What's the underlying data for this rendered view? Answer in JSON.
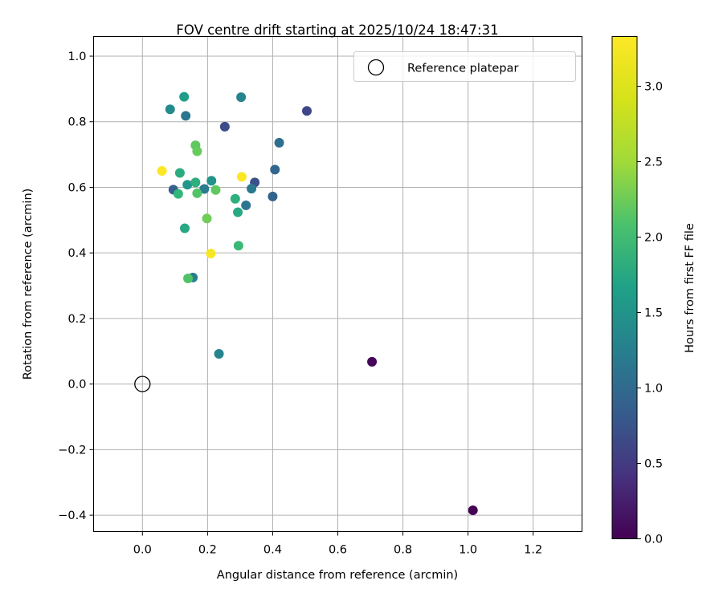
{
  "chart_data": {
    "type": "scatter",
    "title": "FOV centre drift starting at 2025/10/24 18:47:31",
    "xlabel": "Angular distance from reference (arcmin)",
    "ylabel": "Rotation from reference (arcmin)",
    "xlim": [
      -0.15,
      1.35
    ],
    "ylim": [
      -0.45,
      1.06
    ],
    "xticks": [
      0.0,
      0.2,
      0.4,
      0.6,
      0.8,
      1.0,
      1.2
    ],
    "xtick_labels": [
      "0.0",
      "0.2",
      "0.4",
      "0.6",
      "0.8",
      "1.0",
      "1.2"
    ],
    "yticks": [
      -0.4,
      -0.2,
      0.0,
      0.2,
      0.4,
      0.6,
      0.8,
      1.0
    ],
    "ytick_labels": [
      "−0.4",
      "−0.2",
      "0.0",
      "0.2",
      "0.4",
      "0.6",
      "0.8",
      "1.0"
    ],
    "grid": true,
    "legend": {
      "position": "top-right",
      "entries": [
        "Reference platepar"
      ]
    },
    "reference_point": {
      "x": 0.0,
      "y": 0.0,
      "label": "Reference platepar"
    },
    "colorbar": {
      "label": "Hours from first FF file",
      "cmap": "viridis",
      "range": [
        0.0,
        3.33
      ],
      "ticks": [
        0.0,
        0.5,
        1.0,
        1.5,
        2.0,
        2.5,
        3.0
      ],
      "tick_labels": [
        "0.0",
        "0.5",
        "1.0",
        "1.5",
        "2.0",
        "2.5",
        "3.0"
      ]
    },
    "points": [
      {
        "x": 1.015,
        "y": -0.385,
        "c": 0.0
      },
      {
        "x": 0.705,
        "y": 0.068,
        "c": 0.05
      },
      {
        "x": 0.505,
        "y": 0.833,
        "c": 0.7
      },
      {
        "x": 0.253,
        "y": 0.785,
        "c": 0.75
      },
      {
        "x": 0.345,
        "y": 0.615,
        "c": 0.8
      },
      {
        "x": 0.095,
        "y": 0.593,
        "c": 1.0
      },
      {
        "x": 0.4,
        "y": 0.572,
        "c": 1.05
      },
      {
        "x": 0.407,
        "y": 0.654,
        "c": 1.1
      },
      {
        "x": 0.42,
        "y": 0.736,
        "c": 1.2
      },
      {
        "x": 0.318,
        "y": 0.545,
        "c": 1.3
      },
      {
        "x": 0.133,
        "y": 0.818,
        "c": 1.3
      },
      {
        "x": 0.335,
        "y": 0.596,
        "c": 1.35
      },
      {
        "x": 0.19,
        "y": 0.595,
        "c": 1.4
      },
      {
        "x": 0.155,
        "y": 0.325,
        "c": 1.45
      },
      {
        "x": 0.235,
        "y": 0.092,
        "c": 1.5
      },
      {
        "x": 0.303,
        "y": 0.875,
        "c": 1.5
      },
      {
        "x": 0.085,
        "y": 0.838,
        "c": 1.6
      },
      {
        "x": 0.212,
        "y": 0.62,
        "c": 1.7
      },
      {
        "x": 0.138,
        "y": 0.608,
        "c": 1.75
      },
      {
        "x": 0.128,
        "y": 0.876,
        "c": 1.85
      },
      {
        "x": 0.293,
        "y": 0.524,
        "c": 2.0
      },
      {
        "x": 0.13,
        "y": 0.475,
        "c": 2.0
      },
      {
        "x": 0.115,
        "y": 0.644,
        "c": 2.05
      },
      {
        "x": 0.163,
        "y": 0.615,
        "c": 2.1
      },
      {
        "x": 0.285,
        "y": 0.565,
        "c": 2.1
      },
      {
        "x": 0.11,
        "y": 0.58,
        "c": 2.2
      },
      {
        "x": 0.295,
        "y": 0.422,
        "c": 2.25
      },
      {
        "x": 0.168,
        "y": 0.582,
        "c": 2.4
      },
      {
        "x": 0.14,
        "y": 0.322,
        "c": 2.4
      },
      {
        "x": 0.225,
        "y": 0.592,
        "c": 2.5
      },
      {
        "x": 0.163,
        "y": 0.728,
        "c": 2.5
      },
      {
        "x": 0.168,
        "y": 0.71,
        "c": 2.55
      },
      {
        "x": 0.198,
        "y": 0.505,
        "c": 2.6
      },
      {
        "x": 0.06,
        "y": 0.65,
        "c": 3.33
      },
      {
        "x": 0.305,
        "y": 0.632,
        "c": 3.33
      },
      {
        "x": 0.21,
        "y": 0.398,
        "c": 3.3
      }
    ]
  }
}
